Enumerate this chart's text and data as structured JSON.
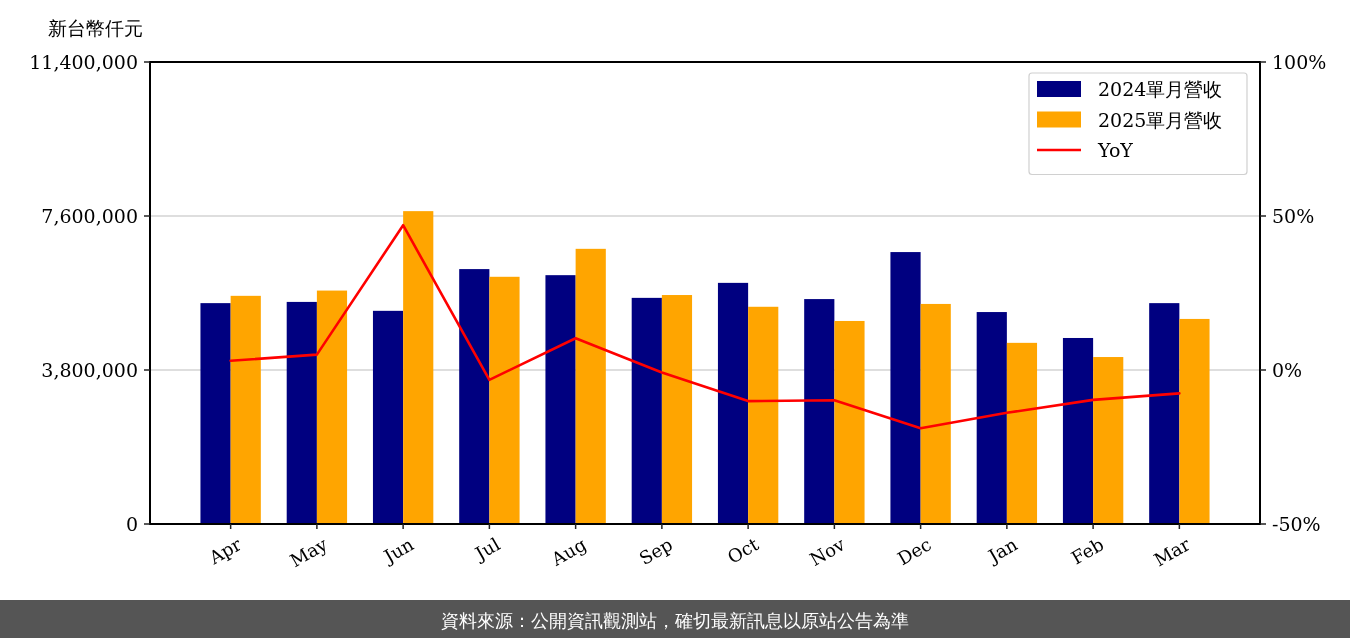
{
  "chart_data": {
    "type": "bar",
    "ylabel": "新台幣仟元",
    "categories": [
      "Apr",
      "May",
      "Jun",
      "Jul",
      "Aug",
      "Sep",
      "Oct",
      "Nov",
      "Dec",
      "Jan",
      "Feb",
      "Mar"
    ],
    "series": [
      {
        "name": "2024單月營收",
        "color": "#000080",
        "values": [
          5450000,
          5480000,
          5260000,
          6290000,
          6140000,
          5580000,
          5950000,
          5550000,
          6710000,
          5230000,
          4590000,
          5450000
        ]
      },
      {
        "name": "2025單月營收",
        "color": "#ffa500",
        "values": [
          5630000,
          5760000,
          7720000,
          6100000,
          6790000,
          5650000,
          5360000,
          5010000,
          5430000,
          4470000,
          4120000,
          5060000
        ]
      },
      {
        "name": "YoY",
        "type": "line",
        "axis": "y2",
        "color": "#ff0000",
        "values": [
          3.0,
          5.0,
          47.0,
          -3.2,
          10.3,
          -0.8,
          -10.1,
          -9.8,
          -18.9,
          -13.9,
          -9.7,
          -7.6
        ]
      }
    ],
    "ylim": [
      0,
      11400000
    ],
    "yticks": [
      {
        "value": 0,
        "label": "0"
      },
      {
        "value": 3800000,
        "label": "3,800,000"
      },
      {
        "value": 7600000,
        "label": "7,600,000"
      },
      {
        "value": 11400000,
        "label": "11,400,000"
      }
    ],
    "y2lim": [
      -50,
      100
    ],
    "y2ticks": [
      {
        "value": -50,
        "label": "-50%"
      },
      {
        "value": 0,
        "label": "0%"
      },
      {
        "value": 50,
        "label": "50%"
      },
      {
        "value": 100,
        "label": "100%"
      }
    ],
    "grid": "y",
    "legend": "top right",
    "annotations": [
      "資料來源：公開資訊觀測站，確切最新訊息以原站公告為準"
    ]
  }
}
